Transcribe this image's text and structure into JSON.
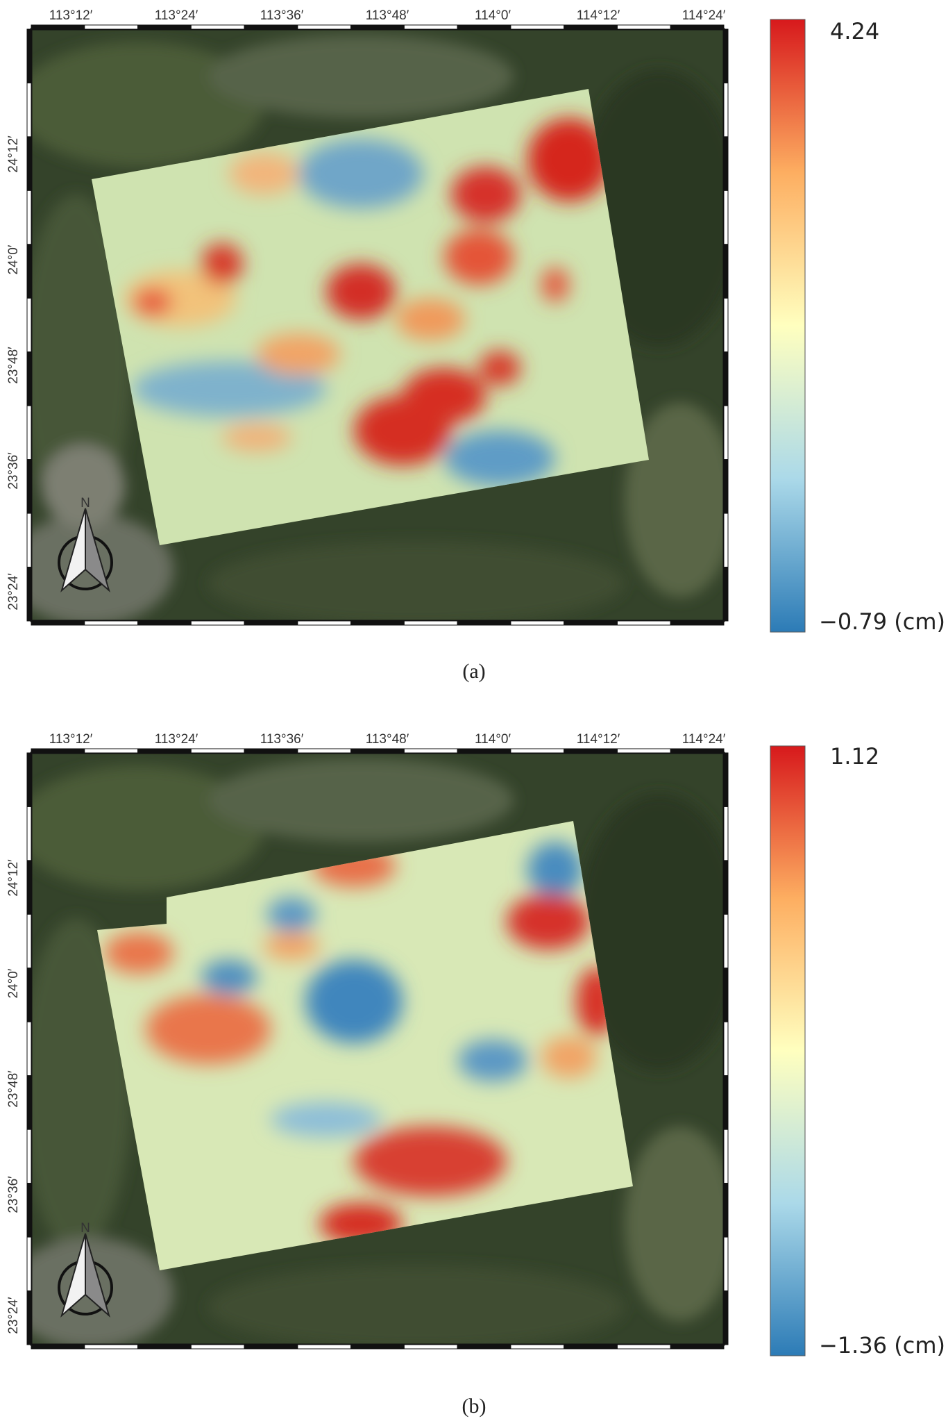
{
  "panels": [
    {
      "id": "a",
      "caption": "(a)",
      "colorbar": {
        "max_label": "4.24",
        "min_label": "−0.79 (cm)",
        "max": 4.24,
        "min": -0.79,
        "unit": "cm"
      },
      "lon_ticks": [
        "113°12′",
        "113°24′",
        "113°36′",
        "113°48′",
        "114°0′",
        "114°12′",
        "114°24′"
      ],
      "lat_ticks": [
        "24°12′",
        "24°0′",
        "23°48′",
        "23°36′",
        "23°24′"
      ]
    },
    {
      "id": "b",
      "caption": "(b)",
      "colorbar": {
        "max_label": "1.12",
        "min_label": "−1.36 (cm)",
        "max": 1.12,
        "min": -1.36,
        "unit": "cm"
      },
      "lon_ticks": [
        "113°12′",
        "113°24′",
        "113°36′",
        "113°48′",
        "114°0′",
        "114°12′",
        "114°24′"
      ],
      "lat_ticks": [
        "24°12′",
        "24°0′",
        "23°48′",
        "23°36′",
        "23°24′"
      ]
    }
  ],
  "north_arrow_letter": "N",
  "colors": {
    "colormap": [
      "#2c7bb6",
      "#abd9e9",
      "#ffffbf",
      "#fdae61",
      "#d7191c"
    ],
    "basemap_dark": "#2d3a24",
    "basemap_mid": "#4a5a35"
  },
  "icons": {
    "north_arrow": "north-arrow-icon"
  }
}
